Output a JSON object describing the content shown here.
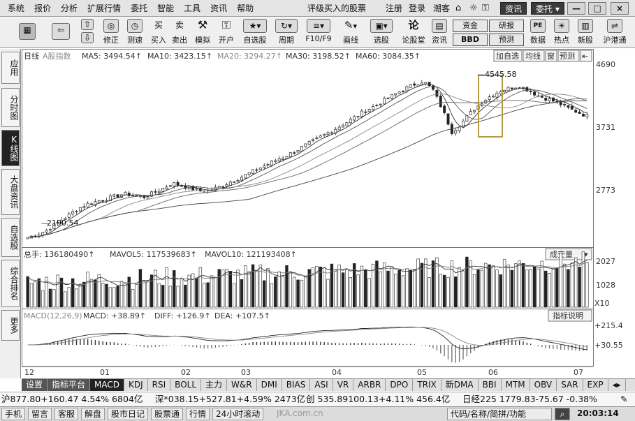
{
  "menu": {
    "items": [
      "系统",
      "报价",
      "分析",
      "扩展行情",
      "委托",
      "智能",
      "工具",
      "资讯",
      "帮助"
    ],
    "promo": "评级买入的股票",
    "register": "注册",
    "login": "登录",
    "taste": "潮客",
    "news_btn": "资讯",
    "trade_btn": "委托",
    "win_min": "—",
    "win_max": "□",
    "win_close": "×"
  },
  "toolbar": {
    "items": [
      {
        "label": "",
        "icon": "grid-icon"
      },
      {
        "label": "",
        "icon": "back-arrow-icon"
      },
      {
        "label": "",
        "icon": "up-down-arrow-icon"
      },
      {
        "label": "修正",
        "icon": "wrench-icon",
        "glyph": "◎"
      },
      {
        "label": "测速",
        "icon": "clock-icon",
        "glyph": "◷"
      },
      {
        "label": "买入",
        "icon": "buy-icon",
        "glyph": "买"
      },
      {
        "label": "卖出",
        "icon": "sell-icon",
        "glyph": "卖"
      },
      {
        "label": "模拟",
        "icon": "hammer-icon",
        "glyph": "⚒"
      },
      {
        "label": "开户",
        "icon": "lock-icon",
        "glyph": "⚿"
      },
      {
        "label": "自选股",
        "icon": "star-list-icon",
        "glyph": "★"
      },
      {
        "label": "周期",
        "icon": "cycle-icon",
        "glyph": "↻"
      },
      {
        "label": "F10/F9",
        "icon": "f10-icon",
        "glyph": "≡"
      },
      {
        "label": "画线",
        "icon": "pen-icon",
        "glyph": "✎"
      },
      {
        "label": "选股",
        "icon": "filter-icon",
        "glyph": "▣"
      },
      {
        "label": "论股堂",
        "icon": "discuss-icon",
        "glyph": "论"
      },
      {
        "label": "资讯",
        "icon": "news-icon",
        "glyph": "▤"
      },
      {
        "label": "数据",
        "icon": "pe-data-icon",
        "glyph": "PE"
      },
      {
        "label": "热点",
        "icon": "hot-icon",
        "glyph": "☀"
      },
      {
        "label": "新股",
        "icon": "new-stock-icon",
        "glyph": "▥"
      },
      {
        "label": "沪港通",
        "icon": "hk-connect-icon",
        "glyph": "⇌"
      }
    ],
    "fund": "资金",
    "bbd": "BBD",
    "research": "研报",
    "forecast": "预测"
  },
  "left_tabs": [
    "应用",
    "分时图",
    "K线图",
    "大盘资讯",
    "自选股",
    "综合排名",
    "更多"
  ],
  "chart": {
    "period": "日线",
    "index_name": "A股指数",
    "ma5": "MA5: 3494.54↑",
    "ma10": "MA10: 3423.15↑",
    "ma20": "MA20: 3294.27↑",
    "ma30": "MA30: 3198.52↑",
    "ma60": "MA60: 3084.35↑",
    "btn_add": "加自选",
    "btn_ma": "均线",
    "btn_window": "窗",
    "btn_forecast": "预测",
    "price_axis": [
      "4690",
      "3731",
      "2773"
    ],
    "high_label": "4545.58",
    "low_label": "2190.54",
    "vol_header": {
      "total": "总手: 136180490↑",
      "mavol5": "MAVOL5: 117539683↑",
      "mavol10": "MAVOL10: 121193408↑"
    },
    "vol_selector": "成交量",
    "vol_axis": [
      "2027",
      "1028",
      "X10"
    ],
    "macd_header": {
      "name": "MACD(12,26,9)",
      "macd": "MACD: +38.89↑",
      "diff": "DIFF: +126.9↑",
      "dea": "DEA: +107.5↑"
    },
    "macd_help": "指标说明",
    "macd_axis": [
      "+215.4",
      "+30.55"
    ],
    "date_axis": [
      "12",
      "01",
      "02",
      "03",
      "04",
      "05",
      "06",
      "07"
    ]
  },
  "chart_data": {
    "type": "candlestick",
    "x": [
      "12",
      "01",
      "02",
      "03",
      "04",
      "05",
      "06",
      "07"
    ],
    "price_ylim": [
      2190.54,
      4690
    ],
    "price_ticks": [
      2773,
      3731,
      4690
    ],
    "high": 4545.58,
    "low": 2190.54,
    "close_trend": [
      2190,
      2230,
      2300,
      2400,
      2500,
      2600,
      2680,
      2720,
      2760,
      2800,
      2840,
      2820,
      2790,
      2850,
      2920,
      3000,
      2960,
      2920,
      2880,
      2900,
      2950,
      3020,
      3080,
      3150,
      3220,
      3290,
      3360,
      3420,
      3500,
      3580,
      3660,
      3740,
      3820,
      3900,
      3990,
      4080,
      4150,
      4240,
      4320,
      4400,
      4470,
      4520,
      4400,
      4100,
      3760,
      3900,
      4060,
      4200,
      4300,
      4380,
      4420,
      4450,
      4380,
      4300,
      4250,
      4200,
      4120,
      4060,
      4000
    ],
    "volume_ticks": [
      1028,
      2027
    ],
    "macd_ticks": [
      30.55,
      215.4
    ]
  },
  "tabs": [
    "设置",
    "指标平台",
    "MACD",
    "KDJ",
    "RSI",
    "BOLL",
    "主力",
    "W&R",
    "DMI",
    "BIAS",
    "ASI",
    "VR",
    "ARBR",
    "DPO",
    "TRIX",
    "新DMA",
    "BBI",
    "MTM",
    "OBV",
    "SAR",
    "EXP"
  ],
  "ticker": {
    "sh": "沪877.80+160.47 4.54%  6804亿",
    "sz": "深*038.15+527.81+4.59%  2473亿",
    "cy": "创  535.89100.13+4.11% 456.4亿",
    "nk": "日经225  1779.83-75.67  -0.38%"
  },
  "status": {
    "items": [
      "手机",
      "留言",
      "客服",
      "解盘",
      "股市日记",
      "股票通",
      "行情",
      "24小时滚动"
    ],
    "site": "JKA.com.cn",
    "search": "代码/名称/简拼/功能",
    "time": "20:03:14"
  }
}
